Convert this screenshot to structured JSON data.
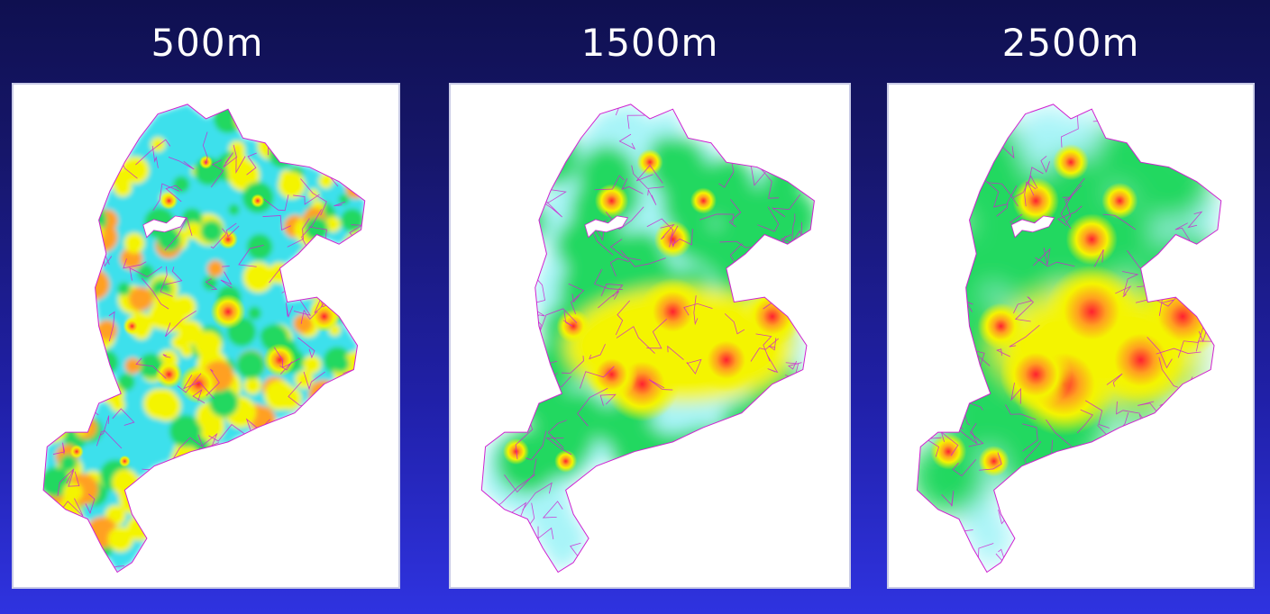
{
  "panels": [
    {
      "title": "500m",
      "bandwidth_m": 500
    },
    {
      "title": "1500m",
      "bandwidth_m": 1500
    },
    {
      "title": "2500m",
      "bandwidth_m": 2500
    }
  ],
  "colors": {
    "background_top": "#0f1050",
    "background_bottom": "#2f33e0",
    "boundary_lines": "#d020d0",
    "density_scale": [
      "#ffffff",
      "#a8f4f8",
      "#3ee0ec",
      "#22d860",
      "#f4f400",
      "#ffa020",
      "#ff2030"
    ]
  }
}
